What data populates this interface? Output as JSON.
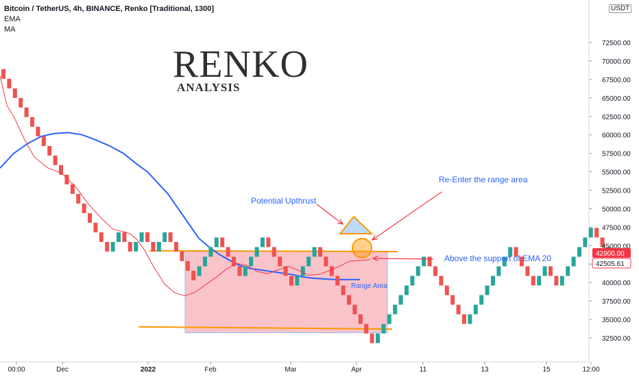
{
  "header": {
    "title": "Bitcoin / TetherUS, 4h, BINANCE, Renko [Traditional, 1300]",
    "indicator_1": "EMA",
    "indicator_2": "MA"
  },
  "brand": {
    "title": "RENKO",
    "subtitle": "ANALYSIS"
  },
  "currency_badge": "USDT",
  "annotations": {
    "potential_upthrust": "Potential Upthrust",
    "reenter": "Re-Enter the range area",
    "ema_support": "Above the support of EMA 20",
    "range_area": "Range Area"
  },
  "price_tags": {
    "last": "42900.00",
    "ema": "42505.61"
  },
  "colors": {
    "up": "#26a69a",
    "down": "#ef5350",
    "ema": "#f23645",
    "ma": "#2962ff",
    "range_fill": "#f7b9bf",
    "orange": "#ff9800",
    "annotation_text": "#2962ff",
    "arrow": "#f23645"
  },
  "chart_data": {
    "type": "renko",
    "brick_size": 1300,
    "y_axis": {
      "ticks": [
        32500,
        35000,
        37500,
        40000,
        42500,
        45000,
        47500,
        50000,
        52500,
        55000,
        57500,
        60000,
        62500,
        65000,
        67500,
        70000,
        72500
      ],
      "tick_labels": [
        "32500.00",
        "35000.00",
        "37500.00",
        "40000.00",
        "42500.00",
        "45000.00",
        "47500.00",
        "50000.00",
        "52500.00",
        "55000.00",
        "57500.00",
        "60000.00",
        "62500.00",
        "65000.00",
        "67500.00",
        "70000.00",
        "72500.00"
      ],
      "ylim": [
        31300,
        73000
      ]
    },
    "x_axis": {
      "ticks": [
        "00:00",
        "Dec",
        "2022",
        "Feb",
        "Mar",
        "Apr",
        "11",
        "13",
        "15",
        "12:00"
      ],
      "bold_ticks": [
        "2022"
      ]
    },
    "bricks": [
      {
        "dir": "down",
        "start": 68900,
        "count": 19
      },
      {
        "dir": "up",
        "start": 44200,
        "count": 2
      },
      {
        "dir": "down",
        "start": 46800,
        "count": 2
      },
      {
        "dir": "up",
        "start": 44200,
        "count": 2
      },
      {
        "dir": "down",
        "start": 46800,
        "count": 2
      },
      {
        "dir": "up",
        "start": 44200,
        "count": 2
      },
      {
        "dir": "down",
        "start": 46800,
        "count": 5
      },
      {
        "dir": "up",
        "start": 40900,
        "count": 4
      },
      {
        "dir": "down",
        "start": 46100,
        "count": 4
      },
      {
        "dir": "up",
        "start": 40900,
        "count": 4
      },
      {
        "dir": "down",
        "start": 46100,
        "count": 5
      },
      {
        "dir": "up",
        "start": 39600,
        "count": 4
      },
      {
        "dir": "down",
        "start": 44800,
        "count": 10
      },
      {
        "dir": "up",
        "start": 31800,
        "count": 9
      },
      {
        "dir": "down",
        "start": 43500,
        "count": 7
      },
      {
        "dir": "up",
        "start": 34400,
        "count": 8
      },
      {
        "dir": "down",
        "start": 44800,
        "count": 4
      },
      {
        "dir": "up",
        "start": 39600,
        "count": 2
      },
      {
        "dir": "down",
        "start": 42200,
        "count": 2
      },
      {
        "dir": "up",
        "start": 39600,
        "count": 6
      },
      {
        "dir": "down",
        "start": 47400,
        "count": 3
      }
    ],
    "ema_20": [
      [
        0,
        68000
      ],
      [
        10,
        64000
      ],
      [
        20,
        62500
      ],
      [
        35,
        59500
      ],
      [
        50,
        57000
      ],
      [
        70,
        55500
      ],
      [
        90,
        54800
      ],
      [
        110,
        53000
      ],
      [
        130,
        50500
      ],
      [
        150,
        48500
      ],
      [
        165,
        47200
      ],
      [
        180,
        46900
      ],
      [
        190,
        46600
      ],
      [
        200,
        45800
      ],
      [
        210,
        44500
      ],
      [
        225,
        42000
      ],
      [
        240,
        39800
      ],
      [
        255,
        38600
      ],
      [
        270,
        38200
      ],
      [
        285,
        38700
      ],
      [
        300,
        39700
      ],
      [
        315,
        40700
      ],
      [
        330,
        41800
      ],
      [
        345,
        42600
      ],
      [
        360,
        42300
      ],
      [
        375,
        41500
      ],
      [
        390,
        41200
      ],
      [
        405,
        41700
      ],
      [
        420,
        42200
      ],
      [
        435,
        41700
      ],
      [
        450,
        41000
      ],
      [
        465,
        41100
      ],
      [
        480,
        41600
      ],
      [
        495,
        42200
      ],
      [
        510,
        42900
      ],
      [
        525,
        43000
      ],
      [
        540,
        43100
      ]
    ],
    "ma_long": [
      [
        0,
        55500
      ],
      [
        20,
        57500
      ],
      [
        40,
        58800
      ],
      [
        60,
        59800
      ],
      [
        80,
        60200
      ],
      [
        100,
        60300
      ],
      [
        120,
        60000
      ],
      [
        140,
        59300
      ],
      [
        160,
        58500
      ],
      [
        180,
        57500
      ],
      [
        200,
        56000
      ],
      [
        215,
        55000
      ],
      [
        230,
        53500
      ],
      [
        245,
        52000
      ],
      [
        260,
        50000
      ],
      [
        275,
        48000
      ],
      [
        290,
        46000
      ],
      [
        305,
        44800
      ],
      [
        320,
        43800
      ],
      [
        335,
        43000
      ],
      [
        350,
        42300
      ],
      [
        365,
        41900
      ],
      [
        380,
        41700
      ],
      [
        395,
        41500
      ],
      [
        410,
        41300
      ],
      [
        425,
        41100
      ],
      [
        440,
        40800
      ],
      [
        455,
        40600
      ],
      [
        470,
        40500
      ],
      [
        490,
        40400
      ],
      [
        510,
        40400
      ],
      [
        525,
        40400
      ]
    ],
    "range_box": {
      "x0": 270,
      "x1": 565,
      "y_top": 44200,
      "y_bottom": 33200
    },
    "resistance": {
      "x0": 218,
      "x1": 580,
      "y0": 44300,
      "y1": 44200
    },
    "support": {
      "x0": 202,
      "x1": 572,
      "y0": 34000,
      "y1": 33700
    },
    "title": "RENKO ANALYSIS"
  }
}
